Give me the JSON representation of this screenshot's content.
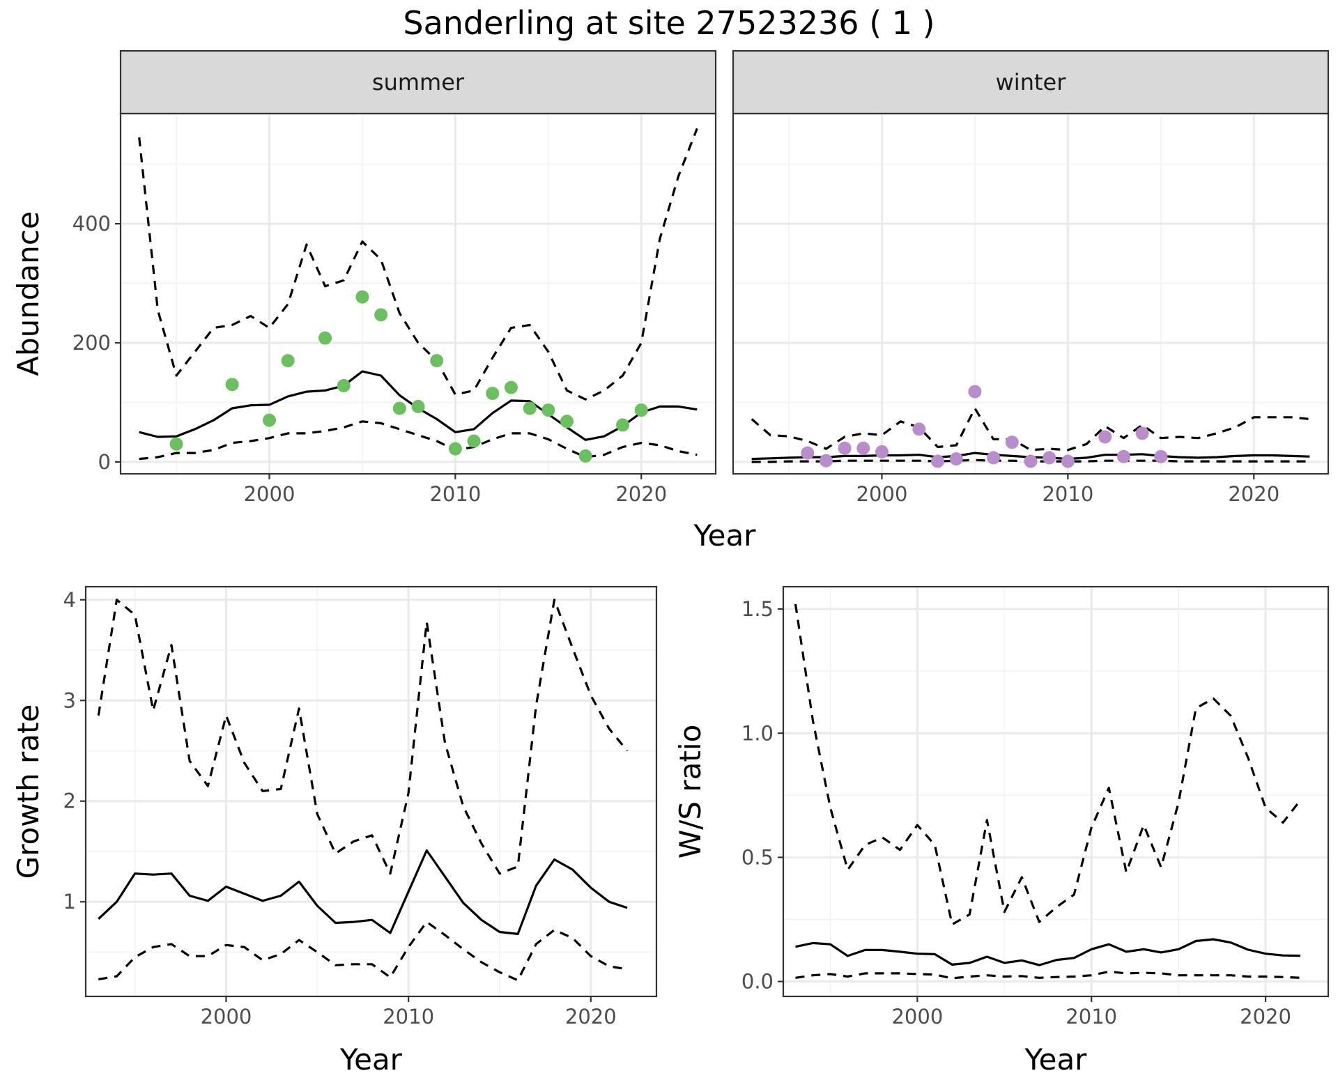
{
  "title": "Sanderling at site 27523236 ( 1 )",
  "colors": {
    "summer_points": "#6abf5e",
    "winter_points": "#b98ccc",
    "lines": "#000000"
  },
  "chart_data": [
    {
      "type": "line",
      "facet": "summer",
      "xlabel": "Year",
      "ylabel": "Abundance",
      "xlim": [
        1992,
        2024
      ],
      "ylim": [
        -20,
        585
      ],
      "x_ticks": [
        2000,
        2010,
        2020
      ],
      "y_ticks": [
        0,
        200,
        400
      ],
      "grid": true,
      "series": [
        {
          "style": "solid",
          "x": [
            1993,
            1994,
            1995,
            1996,
            1997,
            1998,
            1999,
            2000,
            2001,
            2002,
            2003,
            2004,
            2005,
            2006,
            2007,
            2008,
            2009,
            2010,
            2011,
            2012,
            2013,
            2014,
            2015,
            2016,
            2017,
            2018,
            2019,
            2020,
            2021,
            2022,
            2023
          ],
          "y": [
            50,
            42,
            43,
            55,
            70,
            90,
            95,
            96,
            110,
            118,
            120,
            128,
            152,
            145,
            112,
            90,
            72,
            50,
            55,
            82,
            103,
            102,
            80,
            58,
            37,
            43,
            60,
            83,
            93,
            93,
            88
          ]
        },
        {
          "style": "dashed",
          "x": [
            1993,
            1994,
            1995,
            1996,
            1997,
            1998,
            1999,
            2000,
            2001,
            2002,
            2003,
            2004,
            2005,
            2006,
            2007,
            2008,
            2009,
            2010,
            2011,
            2012,
            2013,
            2014,
            2015,
            2016,
            2017,
            2018,
            2019,
            2020,
            2021,
            2022,
            2023
          ],
          "y": [
            545,
            255,
            145,
            185,
            225,
            230,
            245,
            225,
            265,
            365,
            295,
            305,
            370,
            340,
            250,
            200,
            170,
            113,
            120,
            175,
            225,
            230,
            185,
            120,
            105,
            120,
            145,
            200,
            375,
            480,
            560
          ]
        },
        {
          "style": "dashed",
          "x": [
            1993,
            1994,
            1995,
            1996,
            1997,
            1998,
            1999,
            2000,
            2001,
            2002,
            2003,
            2004,
            2005,
            2006,
            2007,
            2008,
            2009,
            2010,
            2011,
            2012,
            2013,
            2014,
            2015,
            2016,
            2017,
            2018,
            2019,
            2020,
            2021,
            2022,
            2023
          ],
          "y": [
            5,
            8,
            15,
            15,
            20,
            32,
            35,
            40,
            48,
            48,
            52,
            58,
            68,
            65,
            55,
            45,
            35,
            20,
            25,
            38,
            48,
            48,
            38,
            22,
            8,
            12,
            25,
            32,
            28,
            18,
            12
          ]
        }
      ],
      "points": {
        "x": [
          1995,
          1998,
          2000,
          2001,
          2003,
          2004,
          2005,
          2006,
          2007,
          2008,
          2009,
          2010,
          2011,
          2012,
          2013,
          2014,
          2015,
          2016,
          2017,
          2019,
          2020
        ],
        "y": [
          30,
          130,
          70,
          170,
          208,
          128,
          277,
          247,
          90,
          93,
          170,
          22,
          35,
          115,
          125,
          90,
          87,
          68,
          10,
          62,
          87
        ]
      }
    },
    {
      "type": "line",
      "facet": "winter",
      "xlabel": "Year",
      "ylabel": "Abundance",
      "xlim": [
        1992,
        2024
      ],
      "ylim": [
        -20,
        585
      ],
      "x_ticks": [
        2000,
        2010,
        2020
      ],
      "y_ticks": [
        0,
        200,
        400
      ],
      "grid": true,
      "series": [
        {
          "style": "solid",
          "x": [
            1993,
            1994,
            1995,
            1996,
            1997,
            1998,
            1999,
            2000,
            2001,
            2002,
            2003,
            2004,
            2005,
            2006,
            2007,
            2008,
            2009,
            2010,
            2011,
            2012,
            2013,
            2014,
            2015,
            2016,
            2017,
            2018,
            2019,
            2020,
            2021,
            2022,
            2023
          ],
          "y": [
            5,
            6,
            7,
            8,
            8,
            10,
            10,
            11,
            11,
            12,
            8,
            10,
            15,
            12,
            10,
            8,
            7,
            5,
            7,
            12,
            12,
            13,
            10,
            8,
            7,
            8,
            10,
            11,
            11,
            10,
            9
          ]
        },
        {
          "style": "dashed",
          "x": [
            1993,
            1994,
            1995,
            1996,
            1997,
            1998,
            1999,
            2000,
            2001,
            2002,
            2003,
            2004,
            2005,
            2006,
            2007,
            2008,
            2009,
            2010,
            2011,
            2012,
            2013,
            2014,
            2015,
            2016,
            2017,
            2018,
            2019,
            2020,
            2021,
            2022,
            2023
          ],
          "y": [
            72,
            45,
            43,
            35,
            22,
            42,
            48,
            45,
            68,
            58,
            25,
            28,
            90,
            38,
            38,
            20,
            22,
            20,
            30,
            60,
            40,
            62,
            40,
            42,
            40,
            48,
            58,
            75,
            75,
            75,
            72
          ]
        },
        {
          "style": "dashed",
          "x": [
            1993,
            1994,
            1995,
            1996,
            1997,
            1998,
            1999,
            2000,
            2001,
            2002,
            2003,
            2004,
            2005,
            2006,
            2007,
            2008,
            2009,
            2010,
            2011,
            2012,
            2013,
            2014,
            2015,
            2016,
            2017,
            2018,
            2019,
            2020,
            2021,
            2022,
            2023
          ],
          "y": [
            0,
            0,
            1,
            1,
            1,
            2,
            2,
            2,
            2,
            2,
            1,
            2,
            3,
            2,
            2,
            1,
            1,
            1,
            1,
            2,
            2,
            2,
            2,
            1,
            1,
            1,
            1,
            1,
            1,
            1,
            1
          ]
        }
      ],
      "points": {
        "x": [
          1996,
          1997,
          1998,
          1999,
          2000,
          2002,
          2003,
          2004,
          2005,
          2006,
          2007,
          2008,
          2009,
          2010,
          2012,
          2013,
          2014,
          2015
        ],
        "y": [
          15,
          2,
          23,
          23,
          17,
          55,
          1,
          5,
          118,
          7,
          33,
          1,
          7,
          1,
          42,
          9,
          48,
          9
        ]
      }
    },
    {
      "type": "line",
      "xlabel": "Year",
      "ylabel": "Growth rate",
      "xlim": [
        1992.3,
        2023.6
      ],
      "ylim": [
        0.06,
        4.13
      ],
      "x_ticks": [
        2000,
        2010,
        2020
      ],
      "y_ticks": [
        1,
        2,
        3,
        4
      ],
      "grid": true,
      "series": [
        {
          "style": "solid",
          "x": [
            1993,
            1994,
            1995,
            1996,
            1997,
            1998,
            1999,
            2000,
            2001,
            2002,
            2003,
            2004,
            2005,
            2006,
            2007,
            2008,
            2009,
            2010,
            2011,
            2012,
            2013,
            2014,
            2015,
            2016,
            2017,
            2018,
            2019,
            2020,
            2021,
            2022
          ],
          "y": [
            0.83,
            1.0,
            1.28,
            1.27,
            1.28,
            1.06,
            1.01,
            1.15,
            1.08,
            1.01,
            1.06,
            1.2,
            0.96,
            0.79,
            0.8,
            0.82,
            0.69,
            1.1,
            1.51,
            1.25,
            0.99,
            0.82,
            0.7,
            0.68,
            1.16,
            1.42,
            1.32,
            1.14,
            1.0,
            0.94
          ]
        },
        {
          "style": "dashed",
          "x": [
            1993,
            1994,
            1995,
            1996,
            1997,
            1998,
            1999,
            2000,
            2001,
            2002,
            2003,
            2004,
            2005,
            2006,
            2007,
            2008,
            2009,
            2010,
            2011,
            2012,
            2013,
            2014,
            2015,
            2016,
            2017,
            2018,
            2019,
            2020,
            2021,
            2022
          ],
          "y": [
            2.85,
            4.0,
            3.85,
            2.9,
            3.55,
            2.4,
            2.15,
            2.85,
            2.38,
            2.1,
            2.12,
            2.92,
            1.87,
            1.48,
            1.6,
            1.66,
            1.28,
            2.08,
            3.78,
            2.58,
            1.95,
            1.58,
            1.28,
            1.35,
            2.95,
            4.0,
            3.52,
            3.05,
            2.72,
            2.5
          ]
        },
        {
          "style": "dashed",
          "x": [
            1993,
            1994,
            1995,
            1996,
            1997,
            1998,
            1999,
            2000,
            2001,
            2002,
            2003,
            2004,
            2005,
            2006,
            2007,
            2008,
            2009,
            2010,
            2011,
            2012,
            2013,
            2014,
            2015,
            2016,
            2017,
            2018,
            2019,
            2020,
            2021,
            2022
          ],
          "y": [
            0.23,
            0.26,
            0.45,
            0.55,
            0.58,
            0.46,
            0.46,
            0.57,
            0.55,
            0.42,
            0.48,
            0.62,
            0.5,
            0.37,
            0.38,
            0.38,
            0.25,
            0.55,
            0.8,
            0.67,
            0.53,
            0.4,
            0.3,
            0.22,
            0.58,
            0.72,
            0.64,
            0.46,
            0.36,
            0.33
          ]
        }
      ]
    },
    {
      "type": "line",
      "xlabel": "Year",
      "ylabel": "W/S ratio",
      "xlim": [
        1992.3,
        2023.6
      ],
      "ylim": [
        -0.06,
        1.59
      ],
      "x_ticks": [
        2000,
        2010,
        2020
      ],
      "y_ticks": [
        0.0,
        0.5,
        1.0,
        1.5
      ],
      "grid": true,
      "series": [
        {
          "style": "solid",
          "x": [
            1993,
            1994,
            1995,
            1996,
            1997,
            1998,
            1999,
            2000,
            2001,
            2002,
            2003,
            2004,
            2005,
            2006,
            2007,
            2008,
            2009,
            2010,
            2011,
            2012,
            2013,
            2014,
            2015,
            2016,
            2017,
            2018,
            2019,
            2020,
            2021,
            2022
          ],
          "y": [
            0.14,
            0.155,
            0.15,
            0.103,
            0.127,
            0.127,
            0.12,
            0.112,
            0.11,
            0.068,
            0.075,
            0.1,
            0.075,
            0.085,
            0.066,
            0.087,
            0.095,
            0.13,
            0.15,
            0.12,
            0.13,
            0.117,
            0.13,
            0.163,
            0.17,
            0.157,
            0.128,
            0.112,
            0.105,
            0.104
          ]
        },
        {
          "style": "dashed",
          "x": [
            1993,
            1994,
            1995,
            1996,
            1997,
            1998,
            1999,
            2000,
            2001,
            2002,
            2003,
            2004,
            2005,
            2006,
            2007,
            2008,
            2009,
            2010,
            2011,
            2012,
            2013,
            2014,
            2015,
            2016,
            2017,
            2018,
            2019,
            2020,
            2021,
            2022
          ],
          "y": [
            1.52,
            1.05,
            0.7,
            0.45,
            0.55,
            0.58,
            0.53,
            0.63,
            0.55,
            0.23,
            0.27,
            0.65,
            0.28,
            0.42,
            0.24,
            0.3,
            0.35,
            0.62,
            0.78,
            0.44,
            0.63,
            0.46,
            0.72,
            1.1,
            1.14,
            1.07,
            0.9,
            0.7,
            0.64,
            0.73
          ]
        },
        {
          "style": "dashed",
          "x": [
            1993,
            1994,
            1995,
            1996,
            1997,
            1998,
            1999,
            2000,
            2001,
            2002,
            2003,
            2004,
            2005,
            2006,
            2007,
            2008,
            2009,
            2010,
            2011,
            2012,
            2013,
            2014,
            2015,
            2016,
            2017,
            2018,
            2019,
            2020,
            2021,
            2022
          ],
          "y": [
            0.015,
            0.025,
            0.03,
            0.02,
            0.033,
            0.033,
            0.033,
            0.03,
            0.028,
            0.013,
            0.02,
            0.025,
            0.02,
            0.022,
            0.015,
            0.018,
            0.02,
            0.025,
            0.04,
            0.033,
            0.035,
            0.033,
            0.025,
            0.025,
            0.025,
            0.025,
            0.02,
            0.02,
            0.018,
            0.015
          ]
        }
      ]
    }
  ]
}
